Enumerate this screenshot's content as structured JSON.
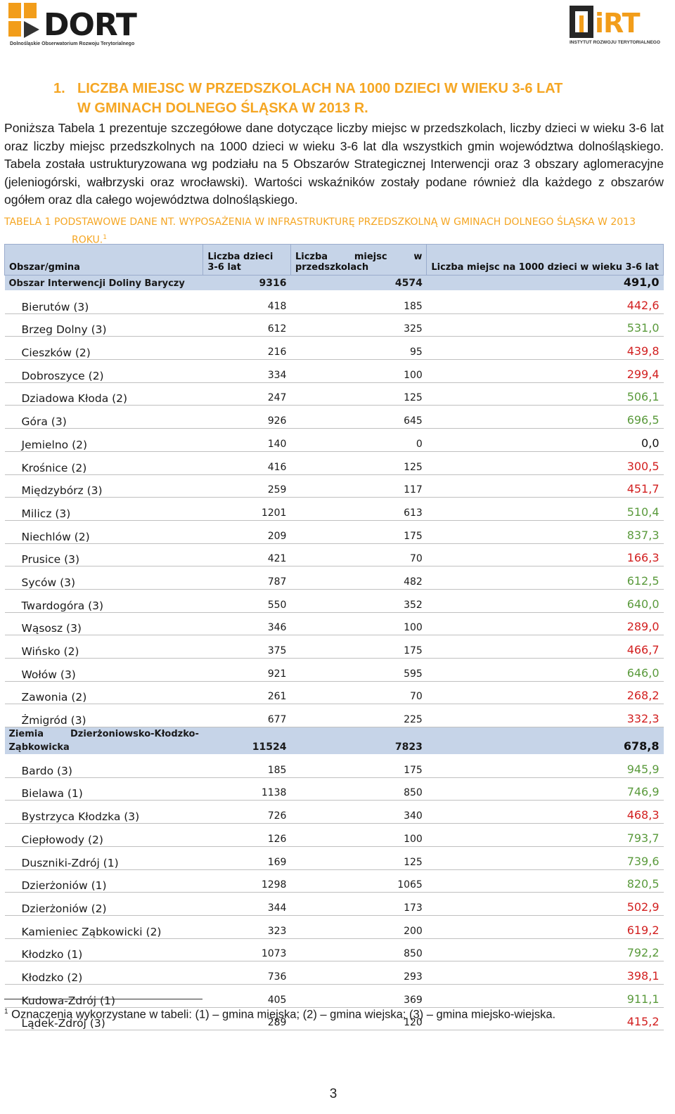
{
  "header": {
    "left_logo_text": "DORT",
    "left_logo_sub": "Dolnośląskie Obserwatorium Rozwoju Terytorialnego",
    "right_logo_text": "iRT",
    "right_logo_sub": "INSTYTUT ROZWOJU TERYTORIALNEGO",
    "accent_color": "#f5a623"
  },
  "heading": {
    "number": "1.",
    "line1": "LICZBA MIEJSC W PRZEDSZKOLACH NA 1000 DZIECI W WIEKU 3-6 LAT",
    "line2": "W GMINACH DOLNEGO ŚLĄSKA W 2013 R."
  },
  "paragraph": "Poniższa Tabela 1 prezentuje szczegółowe dane dotyczące liczby miejsc w przedszkolach, liczby dzieci w wieku 3-6 lat oraz liczby miejsc przedszkolnych na 1000 dzieci w wieku 3-6 lat dla wszystkich gmin województwa dolnośląskiego. Tabela została ustrukturyzowana wg podziału na 5 Obszarów Strategicznej Interwencji oraz 3 obszary aglomeracyjne (jeleniogórski, wałbrzyski oraz wrocławski). Wartości wskaźników zostały podane również dla każdego z obszarów ogółem oraz dla całego województwa dolnośląskiego.",
  "caption": {
    "line1": "TABELA 1 PODSTAWOWE DANE NT. WYPOSAŻENIA W INFRASTRUKTURĘ PRZEDSZKOLNĄ W GMINACH DOLNEGO ŚLĄSKA W 2013",
    "line2": "ROKU.",
    "footnote_ref": "1"
  },
  "table": {
    "headers": {
      "area": "Obszar/gmina",
      "children": "Liczba dzieci 3-6 lat",
      "places_a": "Liczba",
      "places_b": "miejsc",
      "places_c": "w",
      "places_d": "przedszkolach",
      "ratio": "Liczba miejsc na 1000 dzieci w wieku 3-6 lat"
    },
    "rows": [
      {
        "type": "region",
        "name": "Obszar Interwencji Doliny Baryczy",
        "children": "9316",
        "places": "4574",
        "ratio": "491,0",
        "color": "black"
      },
      {
        "type": "gmina",
        "name": "Bierutów (3)",
        "children": "418",
        "places": "185",
        "ratio": "442,6",
        "color": "red"
      },
      {
        "type": "gmina",
        "name": "Brzeg Dolny (3)",
        "children": "612",
        "places": "325",
        "ratio": "531,0",
        "color": "green"
      },
      {
        "type": "gmina",
        "name": "Cieszków (2)",
        "children": "216",
        "places": "95",
        "ratio": "439,8",
        "color": "red"
      },
      {
        "type": "gmina",
        "name": "Dobroszyce (2)",
        "children": "334",
        "places": "100",
        "ratio": "299,4",
        "color": "red"
      },
      {
        "type": "gmina",
        "name": "Dziadowa Kłoda (2)",
        "children": "247",
        "places": "125",
        "ratio": "506,1",
        "color": "green"
      },
      {
        "type": "gmina",
        "name": "Góra (3)",
        "children": "926",
        "places": "645",
        "ratio": "696,5",
        "color": "green"
      },
      {
        "type": "gmina",
        "name": "Jemielno (2)",
        "children": "140",
        "places": "0",
        "ratio": "0,0",
        "color": "black"
      },
      {
        "type": "gmina",
        "name": "Krośnice (2)",
        "children": "416",
        "places": "125",
        "ratio": "300,5",
        "color": "red"
      },
      {
        "type": "gmina",
        "name": "Międzybórz (3)",
        "children": "259",
        "places": "117",
        "ratio": "451,7",
        "color": "red"
      },
      {
        "type": "gmina",
        "name": "Milicz (3)",
        "children": "1201",
        "places": "613",
        "ratio": "510,4",
        "color": "green"
      },
      {
        "type": "gmina",
        "name": "Niechlów (2)",
        "children": "209",
        "places": "175",
        "ratio": "837,3",
        "color": "green"
      },
      {
        "type": "gmina",
        "name": "Prusice (3)",
        "children": "421",
        "places": "70",
        "ratio": "166,3",
        "color": "red"
      },
      {
        "type": "gmina",
        "name": "Syców (3)",
        "children": "787",
        "places": "482",
        "ratio": "612,5",
        "color": "green"
      },
      {
        "type": "gmina",
        "name": "Twardogóra (3)",
        "children": "550",
        "places": "352",
        "ratio": "640,0",
        "color": "green"
      },
      {
        "type": "gmina",
        "name": "Wąsosz (3)",
        "children": "346",
        "places": "100",
        "ratio": "289,0",
        "color": "red"
      },
      {
        "type": "gmina",
        "name": "Wińsko (2)",
        "children": "375",
        "places": "175",
        "ratio": "466,7",
        "color": "red"
      },
      {
        "type": "gmina",
        "name": "Wołów (3)",
        "children": "921",
        "places": "595",
        "ratio": "646,0",
        "color": "green"
      },
      {
        "type": "gmina",
        "name": "Zawonia (2)",
        "children": "261",
        "places": "70",
        "ratio": "268,2",
        "color": "red"
      },
      {
        "type": "gmina",
        "name": "Żmigród (3)",
        "children": "677",
        "places": "225",
        "ratio": "332,3",
        "color": "red"
      },
      {
        "type": "region",
        "name_a": "Ziemia",
        "name_b": "Dzierżoniowsko-Kłodzko-",
        "name_c": "Ząbkowicka",
        "children": "11524",
        "places": "7823",
        "ratio": "678,8",
        "color": "black"
      },
      {
        "type": "gmina",
        "name": "Bardo (3)",
        "children": "185",
        "places": "175",
        "ratio": "945,9",
        "color": "green"
      },
      {
        "type": "gmina",
        "name": "Bielawa (1)",
        "children": "1138",
        "places": "850",
        "ratio": "746,9",
        "color": "green"
      },
      {
        "type": "gmina",
        "name": "Bystrzyca Kłodzka (3)",
        "children": "726",
        "places": "340",
        "ratio": "468,3",
        "color": "red"
      },
      {
        "type": "gmina",
        "name": "Ciepłowody (2)",
        "children": "126",
        "places": "100",
        "ratio": "793,7",
        "color": "green"
      },
      {
        "type": "gmina",
        "name": "Duszniki-Zdrój (1)",
        "children": "169",
        "places": "125",
        "ratio": "739,6",
        "color": "green"
      },
      {
        "type": "gmina",
        "name": "Dzierżoniów (1)",
        "children": "1298",
        "places": "1065",
        "ratio": "820,5",
        "color": "green"
      },
      {
        "type": "gmina",
        "name": "Dzierżoniów (2)",
        "children": "344",
        "places": "173",
        "ratio": "502,9",
        "color": "red"
      },
      {
        "type": "gmina",
        "name": "Kamieniec Ząbkowicki (2)",
        "children": "323",
        "places": "200",
        "ratio": "619,2",
        "color": "red"
      },
      {
        "type": "gmina",
        "name": "Kłodzko (1)",
        "children": "1073",
        "places": "850",
        "ratio": "792,2",
        "color": "green"
      },
      {
        "type": "gmina",
        "name": "Kłodzko (2)",
        "children": "736",
        "places": "293",
        "ratio": "398,1",
        "color": "red"
      },
      {
        "type": "gmina",
        "name": "Kudowa-Zdrój (1)",
        "children": "405",
        "places": "369",
        "ratio": "911,1",
        "color": "green"
      },
      {
        "type": "gmina",
        "name": "Lądek-Zdrój (3)",
        "children": "289",
        "places": "120",
        "ratio": "415,2",
        "color": "red"
      }
    ]
  },
  "footnote": {
    "number": "1",
    "text": " Oznaczenia wykorzystane w tabeli: (1) – gmina miejska; (2) – gmina wiejska; (3) – gmina miejsko-wiejska."
  },
  "page_number": "3"
}
